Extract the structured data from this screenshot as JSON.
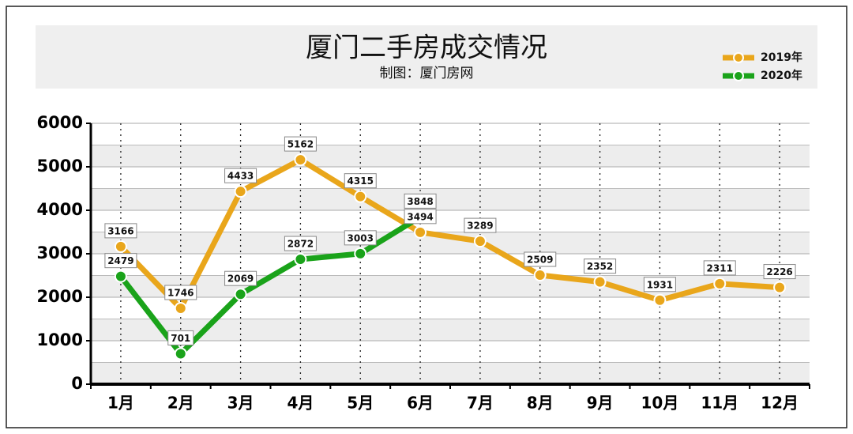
{
  "chart_data": {
    "type": "line",
    "title": "厦门二手房成交情况",
    "subtitle": "制图：厦门房网",
    "categories": [
      "1月",
      "2月",
      "3月",
      "4月",
      "5月",
      "6月",
      "7月",
      "8月",
      "9月",
      "10月",
      "11月",
      "12月"
    ],
    "series": [
      {
        "name": "2019年",
        "color": "#e9a61b",
        "values": [
          3166,
          1746,
          4433,
          5162,
          4315,
          3494,
          3289,
          2509,
          2352,
          1931,
          2311,
          2226
        ]
      },
      {
        "name": "2020年",
        "color": "#1aa31a",
        "values": [
          2479,
          701,
          2069,
          2872,
          3003,
          3848,
          null,
          null,
          null,
          null,
          null,
          null
        ]
      }
    ],
    "ylim": [
      0,
      6000
    ],
    "yticks": [
      0,
      1000,
      2000,
      3000,
      4000,
      5000,
      6000
    ],
    "grid": true,
    "legend": "top-right"
  }
}
